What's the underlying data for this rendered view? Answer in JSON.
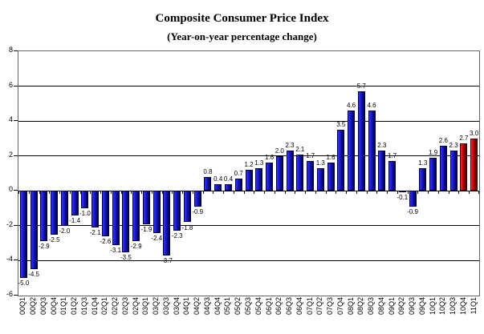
{
  "title": "Composite Consumer Price Index",
  "subtitle": "(Year-on-year percentage change)",
  "chart_data": {
    "type": "bar",
    "title": "Composite Consumer Price Index",
    "subtitle": "(Year-on-year percentage change)",
    "categories": [
      "00Q1",
      "00Q2",
      "00Q3",
      "00Q4",
      "01Q1",
      "01Q2",
      "01Q3",
      "01Q4",
      "02Q1",
      "02Q2",
      "02Q3",
      "02Q4",
      "03Q1",
      "03Q2",
      "03Q3",
      "03Q4",
      "04Q1",
      "04Q2",
      "04Q3",
      "04Q4",
      "05Q1",
      "05Q2",
      "05Q3",
      "05Q4",
      "06Q1",
      "06Q2",
      "06Q3",
      "06Q4",
      "07Q1",
      "07Q2",
      "07Q3",
      "07Q4",
      "08Q1",
      "08Q2",
      "08Q3",
      "08Q4",
      "09Q1",
      "09Q2",
      "09Q3",
      "09Q4",
      "10Q1",
      "10Q2",
      "10Q3",
      "10Q4",
      "11Q1"
    ],
    "values": [
      -5.0,
      -4.5,
      -2.9,
      -2.5,
      -2.0,
      -1.4,
      -1.0,
      -2.1,
      -2.6,
      -3.1,
      -3.5,
      -2.9,
      -1.9,
      -2.4,
      -3.7,
      -2.3,
      -1.8,
      -0.9,
      0.8,
      0.4,
      0.4,
      0.7,
      1.2,
      1.3,
      1.6,
      2.0,
      2.3,
      2.1,
      1.7,
      1.3,
      1.6,
      3.5,
      4.6,
      5.7,
      4.6,
      2.3,
      1.7,
      -0.1,
      -0.9,
      1.3,
      1.9,
      2.6,
      2.3,
      2.7,
      3.0
    ],
    "highlight_indices": [
      43,
      44
    ],
    "xlabel": "",
    "ylabel": "",
    "ylim": [
      -6,
      8
    ],
    "yticks": [
      8,
      6,
      4,
      2,
      0,
      -2,
      -4,
      -6
    ],
    "grid": true,
    "legend": "none",
    "data_labels": true,
    "colors": {
      "blue_gradient": [
        "#3535f2",
        "#1515c0",
        "#000058"
      ],
      "blue_border": "#000040",
      "red_gradient": [
        "#f23030",
        "#b80000",
        "#500000"
      ],
      "red_border": "#3a0000",
      "axis": "#000000",
      "plot_border": "#666666"
    }
  }
}
